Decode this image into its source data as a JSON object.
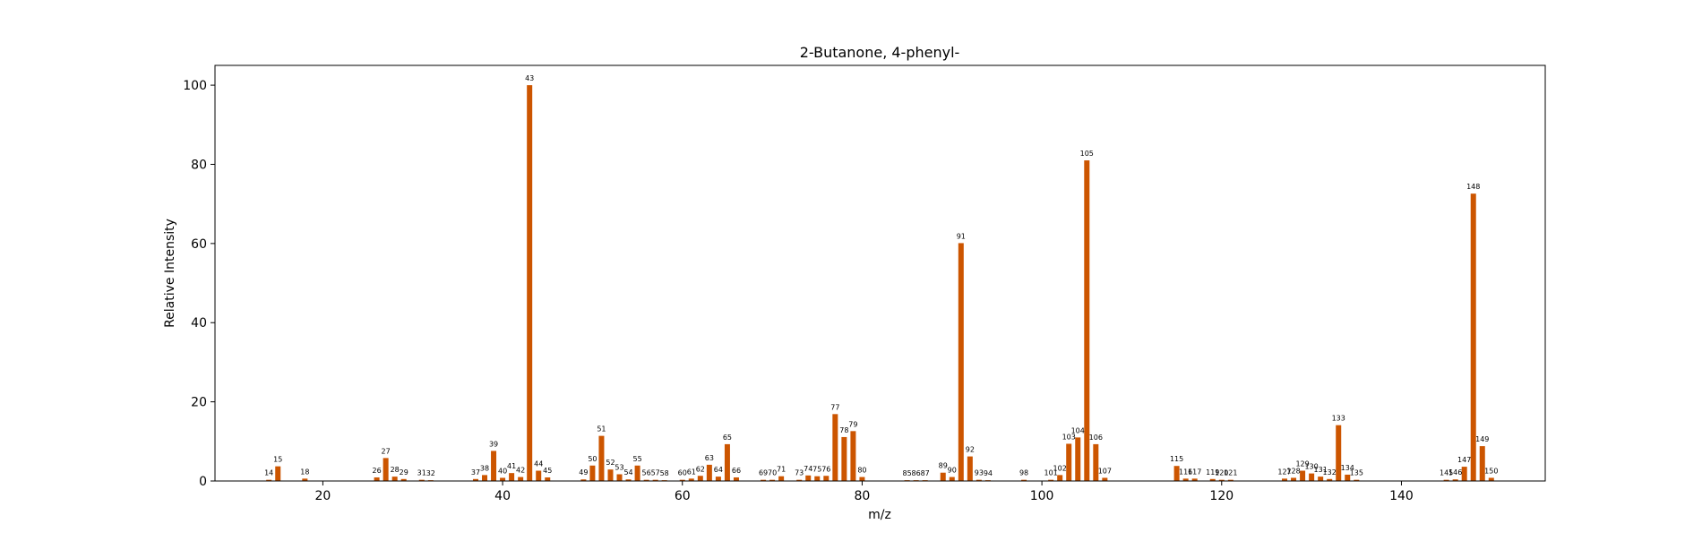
{
  "chart_data": {
    "type": "bar",
    "title": "2-Butanone, 4-phenyl-",
    "xlabel": "m/z",
    "ylabel": "Relative Intensity",
    "xlim": [
      8,
      156
    ],
    "ylim": [
      0,
      105
    ],
    "xticks": [
      20,
      40,
      60,
      80,
      100,
      120,
      140
    ],
    "yticks": [
      0,
      20,
      40,
      60,
      80,
      100
    ],
    "grid": false,
    "bar_color": "#cc5500",
    "x": [
      14,
      15,
      18,
      26,
      27,
      28,
      29,
      31,
      32,
      37,
      38,
      39,
      40,
      41,
      42,
      43,
      44,
      45,
      49,
      50,
      51,
      52,
      53,
      54,
      55,
      56,
      57,
      58,
      60,
      61,
      62,
      63,
      64,
      65,
      66,
      69,
      70,
      71,
      73,
      74,
      75,
      76,
      77,
      78,
      79,
      80,
      85,
      86,
      87,
      89,
      90,
      91,
      92,
      93,
      94,
      98,
      101,
      102,
      103,
      104,
      105,
      106,
      107,
      115,
      116,
      117,
      119,
      120,
      121,
      127,
      128,
      129,
      130,
      131,
      132,
      133,
      134,
      135,
      145,
      146,
      147,
      148,
      149,
      150
    ],
    "values": [
      0.3,
      3.7,
      0.6,
      0.9,
      5.8,
      1.1,
      0.5,
      0.3,
      0.2,
      0.5,
      1.5,
      7.6,
      0.8,
      2.0,
      1.0,
      100,
      2.6,
      0.9,
      0.4,
      3.9,
      11.4,
      2.9,
      1.7,
      0.4,
      3.9,
      0.3,
      0.3,
      0.2,
      0.3,
      0.6,
      1.3,
      4.1,
      1.1,
      9.3,
      0.9,
      0.3,
      0.3,
      1.2,
      0.3,
      1.4,
      1.2,
      1.3,
      16.9,
      11.1,
      12.6,
      1.0,
      0.2,
      0.2,
      0.2,
      2.1,
      1.0,
      60.1,
      6.2,
      0.3,
      0.2,
      0.3,
      0.3,
      1.5,
      9.4,
      11.0,
      81.0,
      9.3,
      0.8,
      3.8,
      0.6,
      0.6,
      0.5,
      0.3,
      0.3,
      0.6,
      0.8,
      2.6,
      1.9,
      1.1,
      0.5,
      14.1,
      1.6,
      0.3,
      0.3,
      0.4,
      3.6,
      72.6,
      8.8,
      0.8
    ]
  }
}
